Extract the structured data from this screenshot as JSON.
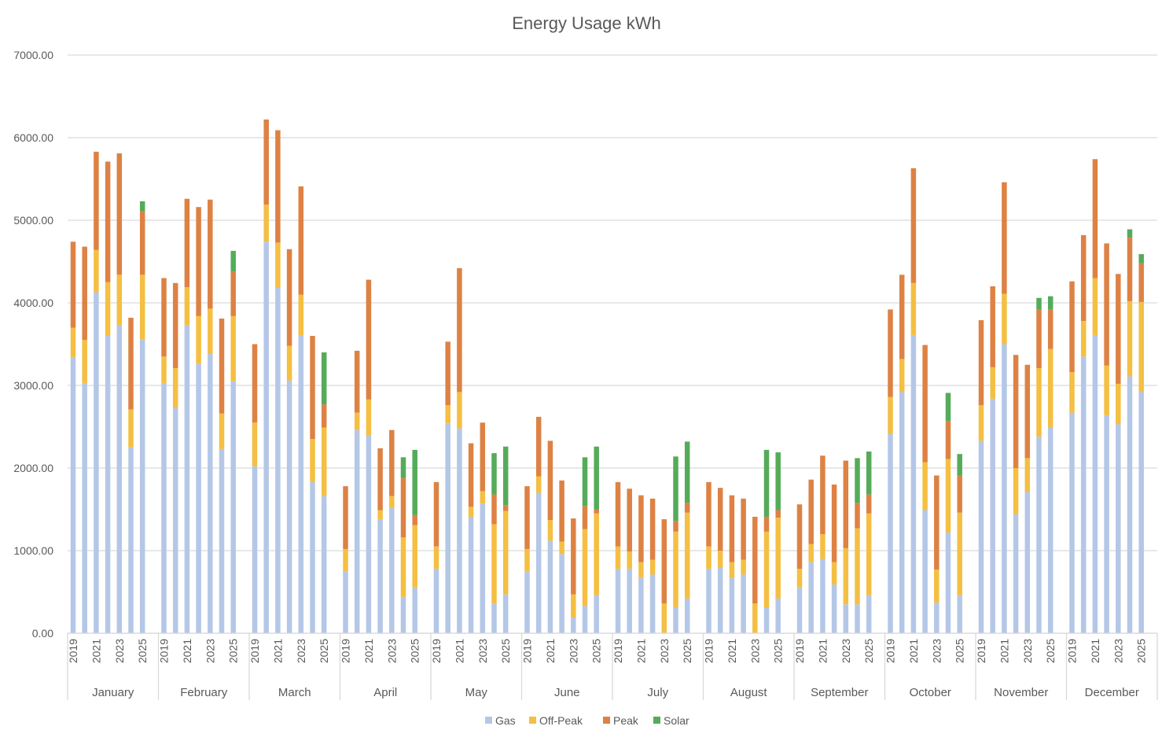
{
  "chart_data": {
    "type": "bar",
    "stacked": true,
    "title": "Energy Usage kWh",
    "xlabel": "",
    "ylabel": "",
    "ylim": [
      0,
      7000
    ],
    "yticks": [
      "0.00",
      "1000.00",
      "2000.00",
      "3000.00",
      "4000.00",
      "5000.00",
      "6000.00",
      "7000.00"
    ],
    "grid": true,
    "legend_position": "bottom",
    "months": [
      "January",
      "February",
      "March",
      "April",
      "May",
      "June",
      "July",
      "August",
      "September",
      "October",
      "November",
      "December"
    ],
    "years": [
      "2019",
      "2020",
      "2021",
      "2022",
      "2023",
      "2024",
      "2025"
    ],
    "year_labels_shown": [
      "2019",
      "2021",
      "2023",
      "2025"
    ],
    "series": [
      {
        "name": "Gas",
        "color": "#b4c7e7",
        "values": [
          [
            3340,
            3030,
            4130,
            3600,
            3730,
            2250,
            3560
          ],
          [
            3030,
            2730,
            3730,
            3260,
            3380,
            2230,
            3050
          ],
          [
            2020,
            4740,
            4180,
            3060,
            3610,
            1830,
            1660
          ],
          [
            750,
            2460,
            2400,
            1380,
            1520,
            440,
            550
          ],
          [
            780,
            2540,
            2480,
            1410,
            1570,
            360,
            470
          ],
          [
            750,
            1700,
            1120,
            960,
            190,
            330,
            460
          ],
          [
            780,
            780,
            670,
            710,
            0,
            310,
            420
          ],
          [
            780,
            800,
            670,
            710,
            0,
            310,
            420
          ],
          [
            550,
            860,
            900,
            590,
            350,
            350,
            460
          ],
          [
            2410,
            2920,
            3610,
            1490,
            370,
            1220,
            460
          ],
          [
            2330,
            2840,
            3500,
            1440,
            1710,
            2380,
            2490
          ],
          [
            2670,
            3350,
            3610,
            2640,
            2530,
            3110,
            2920
          ]
        ]
      },
      {
        "name": "Off-Peak",
        "color": "#f4bf42",
        "values": [
          [
            360,
            520,
            510,
            650,
            610,
            460,
            780
          ],
          [
            320,
            480,
            460,
            580,
            550,
            430,
            790
          ],
          [
            530,
            450,
            550,
            420,
            490,
            520,
            830
          ],
          [
            270,
            210,
            430,
            110,
            140,
            720,
            760
          ],
          [
            270,
            220,
            440,
            120,
            150,
            960,
            1010
          ],
          [
            270,
            200,
            250,
            150,
            280,
            930,
            990
          ],
          [
            270,
            210,
            190,
            180,
            360,
            920,
            1040
          ],
          [
            270,
            200,
            190,
            180,
            360,
            920,
            980
          ],
          [
            230,
            220,
            300,
            270,
            680,
            920,
            990
          ],
          [
            450,
            400,
            630,
            580,
            400,
            890,
            1000
          ],
          [
            430,
            380,
            610,
            560,
            410,
            830,
            950
          ],
          [
            490,
            430,
            690,
            600,
            490,
            910,
            1090
          ]
        ]
      },
      {
        "name": "Peak",
        "color": "#dd8244",
        "values": [
          [
            1040,
            1130,
            1190,
            1460,
            1470,
            1110,
            770
          ],
          [
            950,
            1030,
            1070,
            1320,
            1320,
            1150,
            540
          ],
          [
            950,
            1030,
            1360,
            1170,
            1310,
            1250,
            280
          ],
          [
            760,
            750,
            1450,
            750,
            800,
            720,
            120
          ],
          [
            780,
            770,
            1500,
            770,
            830,
            360,
            70
          ],
          [
            760,
            720,
            960,
            740,
            920,
            280,
            50
          ],
          [
            780,
            760,
            810,
            740,
            1020,
            130,
            120
          ],
          [
            780,
            760,
            810,
            740,
            1050,
            180,
            90
          ],
          [
            780,
            780,
            950,
            940,
            1060,
            310,
            230
          ],
          [
            1060,
            1020,
            1390,
            1420,
            1140,
            460,
            450
          ],
          [
            1030,
            980,
            1350,
            1370,
            1130,
            710,
            480
          ],
          [
            1100,
            1040,
            1440,
            1480,
            1330,
            770,
            470
          ]
        ]
      },
      {
        "name": "Solar",
        "color": "#55ab59",
        "values": [
          [
            0,
            0,
            0,
            0,
            0,
            0,
            120
          ],
          [
            0,
            0,
            0,
            0,
            0,
            0,
            250
          ],
          [
            0,
            0,
            0,
            0,
            0,
            0,
            630
          ],
          [
            0,
            0,
            0,
            0,
            0,
            250,
            790
          ],
          [
            0,
            0,
            0,
            0,
            0,
            500,
            710
          ],
          [
            0,
            0,
            0,
            0,
            0,
            590,
            760
          ],
          [
            0,
            0,
            0,
            0,
            0,
            780,
            740
          ],
          [
            0,
            0,
            0,
            0,
            0,
            810,
            700
          ],
          [
            0,
            0,
            0,
            0,
            0,
            540,
            520
          ],
          [
            0,
            0,
            0,
            0,
            0,
            340,
            260
          ],
          [
            0,
            0,
            0,
            0,
            0,
            140,
            160
          ],
          [
            0,
            0,
            0,
            0,
            0,
            100,
            110
          ]
        ]
      }
    ]
  }
}
